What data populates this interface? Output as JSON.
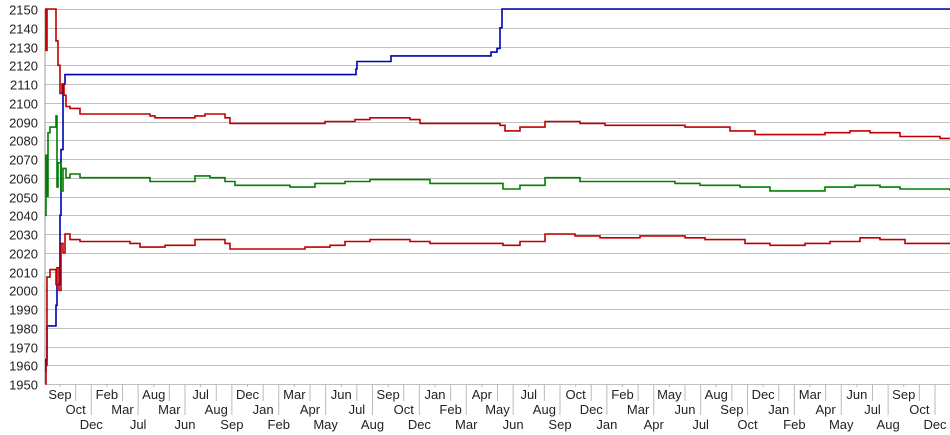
{
  "chart_data": {
    "type": "line",
    "title": "",
    "xlabel": "",
    "ylabel": "",
    "ylim": [
      1950,
      2150
    ],
    "y_ticks": [
      1950,
      1960,
      1970,
      1980,
      1990,
      2000,
      2010,
      2020,
      2030,
      2040,
      2050,
      2060,
      2070,
      2080,
      2090,
      2100,
      2110,
      2120,
      2130,
      2140,
      2150
    ],
    "grid": true,
    "legend": "none",
    "x_range": [
      0,
      905
    ],
    "x_tick_labels": [
      "Sep",
      "Oct",
      "Dec",
      "Feb",
      "Mar",
      "Jul",
      "Aug",
      "Mar",
      "Jun",
      "Jul",
      "Aug",
      "Sep",
      "Dec",
      "Jan",
      "Feb",
      "Mar",
      "Apr",
      "May",
      "Jun",
      "Jul",
      "Aug",
      "Sep",
      "Oct",
      "Dec",
      "Jan",
      "Feb",
      "Mar",
      "Apr",
      "May",
      "Jun",
      "Jul",
      "Aug",
      "Sep",
      "Oct",
      "Dec",
      "Jan",
      "Feb",
      "Mar",
      "Apr",
      "May",
      "Jun",
      "Jul",
      "Aug",
      "Sep",
      "Oct",
      "Dec",
      "Jan",
      "Feb",
      "Mar",
      "Apr",
      "May",
      "Jun",
      "Jul",
      "Aug",
      "Sep",
      "Oct",
      "Dec"
    ],
    "series": [
      {
        "color": "#0000b4",
        "step": true,
        "points": [
          [
            0,
            1957
          ],
          [
            1,
            1963
          ],
          [
            2,
            1981
          ],
          [
            10,
            1981
          ],
          [
            11,
            1992
          ],
          [
            12,
            2003
          ],
          [
            15,
            2040
          ],
          [
            16,
            2075
          ],
          [
            18,
            2110
          ],
          [
            20,
            2115
          ],
          [
            310,
            2115
          ],
          [
            311,
            2118
          ],
          [
            312,
            2122
          ],
          [
            345,
            2122
          ],
          [
            346,
            2125
          ],
          [
            445,
            2125
          ],
          [
            446,
            2127
          ],
          [
            452,
            2129
          ],
          [
            455,
            2140
          ],
          [
            457,
            2150
          ],
          [
            905,
            2150
          ]
        ]
      },
      {
        "color": "#c00000",
        "step": true,
        "points": [
          [
            0,
            2150
          ],
          [
            1,
            2128
          ],
          [
            2,
            2150
          ],
          [
            10,
            2150
          ],
          [
            11,
            2133
          ],
          [
            13,
            2120
          ],
          [
            15,
            2105
          ],
          [
            17,
            2110
          ],
          [
            19,
            2104
          ],
          [
            21,
            2098
          ],
          [
            25,
            2097
          ],
          [
            35,
            2094
          ],
          [
            105,
            2093
          ],
          [
            110,
            2092
          ],
          [
            150,
            2093
          ],
          [
            160,
            2094
          ],
          [
            180,
            2092
          ],
          [
            185,
            2089
          ],
          [
            255,
            2089
          ],
          [
            280,
            2090
          ],
          [
            310,
            2091
          ],
          [
            325,
            2092
          ],
          [
            365,
            2091
          ],
          [
            375,
            2089
          ],
          [
            435,
            2089
          ],
          [
            455,
            2088
          ],
          [
            460,
            2085
          ],
          [
            475,
            2087
          ],
          [
            500,
            2090
          ],
          [
            535,
            2089
          ],
          [
            560,
            2088
          ],
          [
            615,
            2088
          ],
          [
            640,
            2087
          ],
          [
            685,
            2085
          ],
          [
            710,
            2083
          ],
          [
            755,
            2083
          ],
          [
            780,
            2084
          ],
          [
            805,
            2085
          ],
          [
            825,
            2084
          ],
          [
            855,
            2082
          ],
          [
            880,
            2082
          ],
          [
            895,
            2081
          ],
          [
            905,
            2081
          ]
        ]
      },
      {
        "color": "#008000",
        "step": true,
        "points": [
          [
            0,
            2040
          ],
          [
            1,
            2072
          ],
          [
            2,
            2050
          ],
          [
            3,
            2084
          ],
          [
            5,
            2087
          ],
          [
            10,
            2087
          ],
          [
            11,
            2093
          ],
          [
            12,
            2055
          ],
          [
            13,
            2068
          ],
          [
            16,
            2053
          ],
          [
            18,
            2065
          ],
          [
            21,
            2060
          ],
          [
            25,
            2062
          ],
          [
            35,
            2060
          ],
          [
            100,
            2060
          ],
          [
            105,
            2058
          ],
          [
            140,
            2058
          ],
          [
            150,
            2061
          ],
          [
            165,
            2060
          ],
          [
            180,
            2058
          ],
          [
            190,
            2056
          ],
          [
            245,
            2055
          ],
          [
            270,
            2057
          ],
          [
            300,
            2058
          ],
          [
            325,
            2059
          ],
          [
            365,
            2059
          ],
          [
            385,
            2057
          ],
          [
            445,
            2057
          ],
          [
            458,
            2054
          ],
          [
            475,
            2056
          ],
          [
            500,
            2060
          ],
          [
            535,
            2058
          ],
          [
            595,
            2058
          ],
          [
            630,
            2057
          ],
          [
            655,
            2056
          ],
          [
            695,
            2055
          ],
          [
            725,
            2053
          ],
          [
            755,
            2053
          ],
          [
            780,
            2055
          ],
          [
            810,
            2056
          ],
          [
            835,
            2055
          ],
          [
            855,
            2054
          ],
          [
            885,
            2054
          ],
          [
            905,
            2053
          ]
        ]
      },
      {
        "color": "#c00000",
        "step": true,
        "points": [
          [
            0,
            1950
          ],
          [
            1,
            1960
          ],
          [
            2,
            2007
          ],
          [
            5,
            2011
          ],
          [
            10,
            2011
          ],
          [
            11,
            2003
          ],
          [
            12,
            2012
          ],
          [
            14,
            2000
          ],
          [
            16,
            2025
          ],
          [
            18,
            2020
          ],
          [
            20,
            2030
          ],
          [
            25,
            2027
          ],
          [
            35,
            2026
          ],
          [
            85,
            2025
          ],
          [
            95,
            2023
          ],
          [
            120,
            2024
          ],
          [
            150,
            2027
          ],
          [
            165,
            2027
          ],
          [
            180,
            2025
          ],
          [
            185,
            2022
          ],
          [
            235,
            2022
          ],
          [
            260,
            2023
          ],
          [
            285,
            2024
          ],
          [
            300,
            2026
          ],
          [
            325,
            2027
          ],
          [
            365,
            2026
          ],
          [
            385,
            2025
          ],
          [
            445,
            2025
          ],
          [
            458,
            2024
          ],
          [
            475,
            2026
          ],
          [
            500,
            2030
          ],
          [
            530,
            2029
          ],
          [
            555,
            2028
          ],
          [
            595,
            2029
          ],
          [
            640,
            2028
          ],
          [
            660,
            2027
          ],
          [
            700,
            2025
          ],
          [
            725,
            2024
          ],
          [
            760,
            2025
          ],
          [
            785,
            2026
          ],
          [
            815,
            2028
          ],
          [
            835,
            2027
          ],
          [
            860,
            2025
          ],
          [
            905,
            2025
          ]
        ]
      }
    ]
  }
}
